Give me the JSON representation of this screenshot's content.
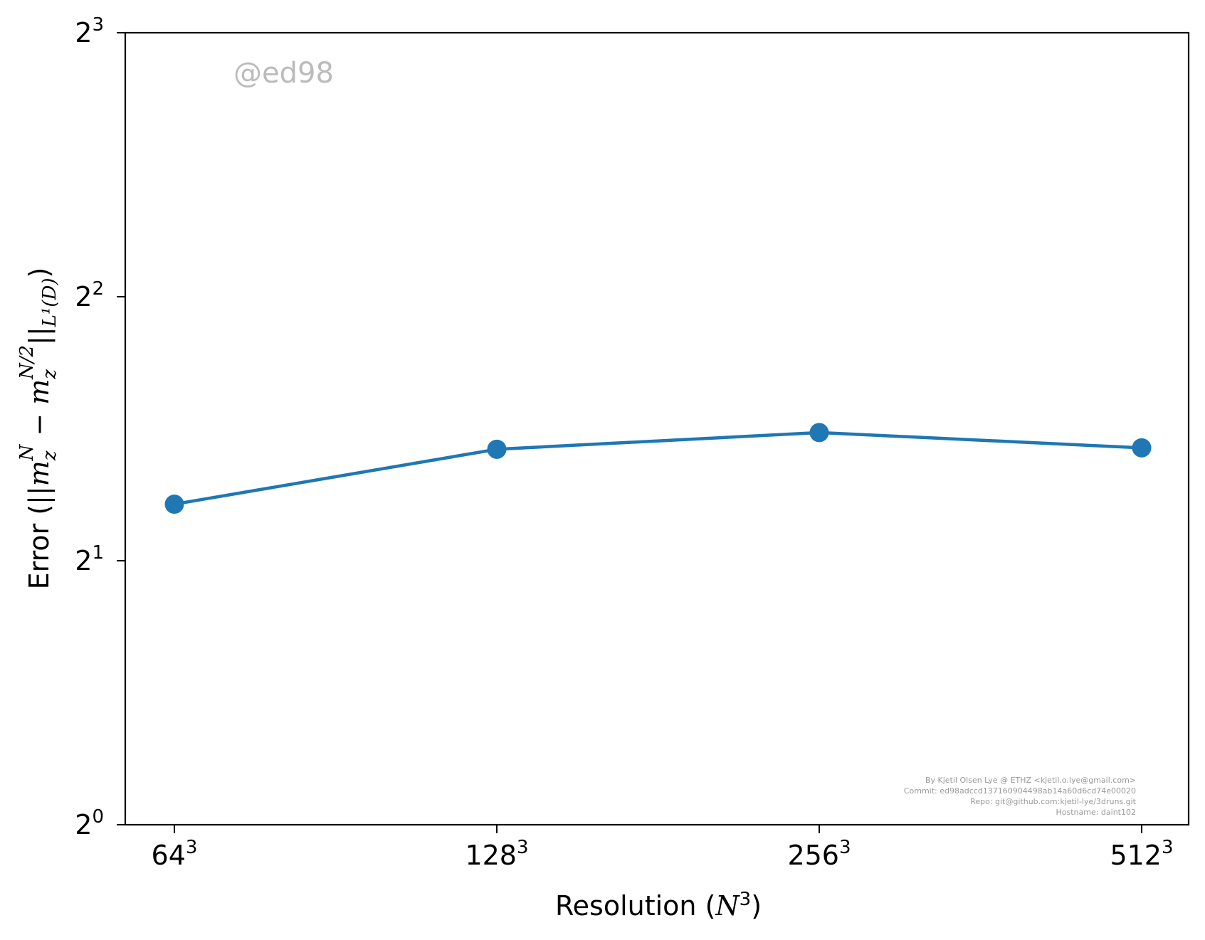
{
  "chart_data": {
    "type": "line",
    "xlabel_text": "Resolution (",
    "xlabel_var": "N",
    "xlabel_sup": "3",
    "xlabel_close": ")",
    "ylabel_text": "Error (",
    "ylabel_math": "||m",
    "ylabel_sub1": "z",
    "ylabel_sup1": "N",
    "ylabel_minus": " − m",
    "ylabel_sub2": "z",
    "ylabel_sup2": "N/2",
    "ylabel_norm": "||",
    "ylabel_sub3": "L¹(D)",
    "ylabel_close": ")",
    "x_scale": "log2",
    "y_scale": "log2",
    "x_ticks": [
      {
        "base": "64",
        "sup": "3",
        "value": 64
      },
      {
        "base": "128",
        "sup": "3",
        "value": 128
      },
      {
        "base": "256",
        "sup": "3",
        "value": 256
      },
      {
        "base": "512",
        "sup": "3",
        "value": 512
      }
    ],
    "y_ticks": [
      {
        "base": "2",
        "sup": "0",
        "value": 1
      },
      {
        "base": "2",
        "sup": "1",
        "value": 2
      },
      {
        "base": "2",
        "sup": "2",
        "value": 4
      },
      {
        "base": "2",
        "sup": "3",
        "value": 8
      }
    ],
    "ylim": [
      1,
      8
    ],
    "grid": false,
    "series": [
      {
        "color": "#1f77b4",
        "x": [
          64,
          128,
          256,
          512
        ],
        "y": [
          2.32,
          2.68,
          2.8,
          2.69
        ]
      }
    ]
  },
  "watermark": {
    "text": "@ed98",
    "color": "#bbbbbb"
  },
  "credits": [
    "By Kjetil Olsen Lye @ ETHZ <kjetil.o.lye@gmail.com>",
    "Commit: ed98adccd137160904498ab14a60d6cd74e00020",
    "Repo: git@github.com:kjetil-lye/3druns.git",
    "Hostname: daint102"
  ]
}
